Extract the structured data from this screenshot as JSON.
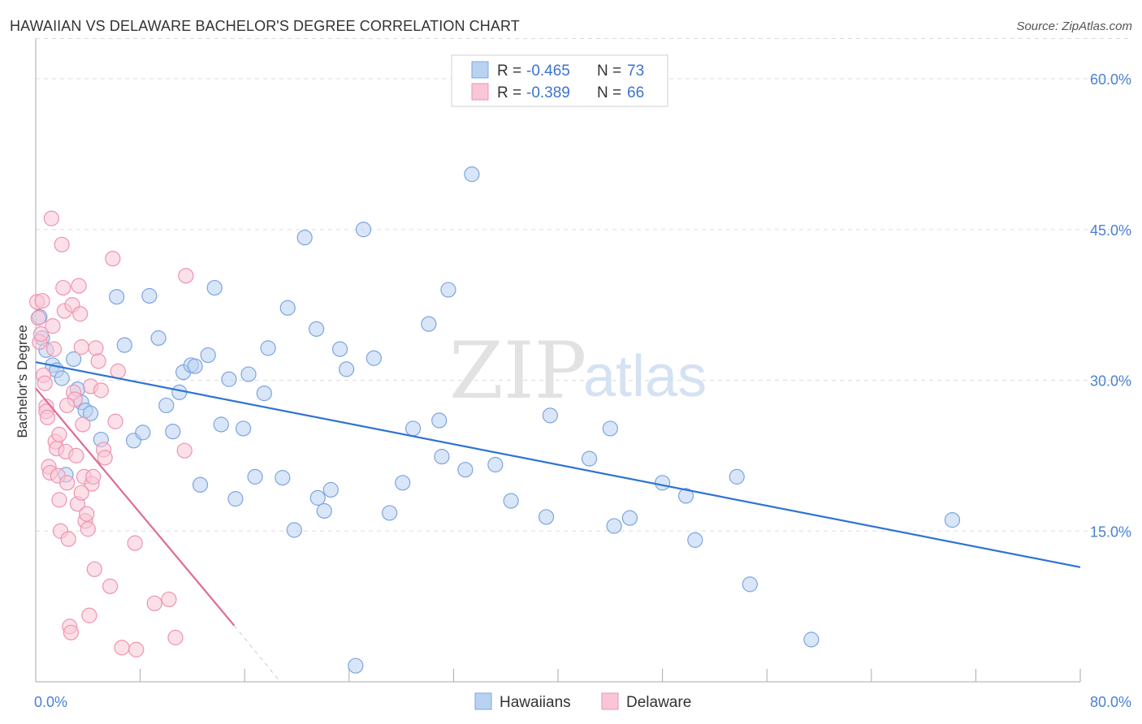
{
  "title": "HAWAIIAN VS DELAWARE BACHELOR'S DEGREE CORRELATION CHART",
  "source": "Source: ZipAtlas.com",
  "colors": {
    "blue_fill": "#b9d2f2",
    "blue_stroke": "#7ba5e0",
    "blue_line": "#2f73d0",
    "pink_fill": "#f9c6d6",
    "pink_stroke": "#ee93b1",
    "pink_line": "#e06b93",
    "grid": "#dddddd",
    "tick": "#4a7fd4"
  },
  "chart_data": {
    "type": "scatter",
    "title": "HAWAIIAN VS DELAWARE BACHELOR'S DEGREE CORRELATION CHART",
    "xlabel": "",
    "ylabel": "Bachelor's Degree",
    "xlim": [
      0,
      80
    ],
    "ylim": [
      0,
      64
    ],
    "x_tick_labels": [
      "0.0%",
      "80.0%"
    ],
    "y_ticks": [
      15,
      30,
      45,
      60
    ],
    "y_tick_labels": [
      "15.0%",
      "30.0%",
      "45.0%",
      "60.0%"
    ],
    "legend": {
      "rows": [
        {
          "r_label": "R =",
          "r_value": "-0.465",
          "n_label": "N =",
          "n_value": "73"
        },
        {
          "r_label": "R =",
          "r_value": "-0.389",
          "n_label": "N =",
          "n_value": "66"
        }
      ]
    },
    "series": [
      {
        "name": "Hawaiians",
        "trend": {
          "x0": 0,
          "y0": 31.8,
          "x1": 80,
          "y1": 11.4
        },
        "points": [
          [
            0.3,
            36.3
          ],
          [
            0.5,
            34.2
          ],
          [
            0.8,
            33.0
          ],
          [
            1.3,
            31.5
          ],
          [
            1.6,
            31.0
          ],
          [
            2.0,
            30.2
          ],
          [
            2.3,
            20.6
          ],
          [
            2.9,
            32.1
          ],
          [
            3.2,
            29.1
          ],
          [
            3.5,
            27.8
          ],
          [
            3.8,
            27.0
          ],
          [
            4.2,
            26.7
          ],
          [
            5.0,
            24.1
          ],
          [
            6.2,
            38.3
          ],
          [
            6.8,
            33.5
          ],
          [
            7.5,
            24.0
          ],
          [
            8.2,
            24.8
          ],
          [
            8.7,
            38.4
          ],
          [
            9.4,
            34.2
          ],
          [
            10.0,
            27.5
          ],
          [
            10.5,
            24.9
          ],
          [
            11.0,
            28.8
          ],
          [
            11.3,
            30.8
          ],
          [
            11.9,
            31.5
          ],
          [
            12.2,
            31.4
          ],
          [
            12.6,
            19.6
          ],
          [
            13.2,
            32.5
          ],
          [
            13.7,
            39.2
          ],
          [
            14.2,
            25.6
          ],
          [
            14.8,
            30.1
          ],
          [
            15.3,
            18.2
          ],
          [
            15.9,
            25.2
          ],
          [
            16.3,
            30.6
          ],
          [
            16.8,
            20.4
          ],
          [
            17.5,
            28.7
          ],
          [
            17.8,
            33.2
          ],
          [
            18.9,
            20.3
          ],
          [
            19.3,
            37.2
          ],
          [
            19.8,
            15.1
          ],
          [
            20.6,
            44.2
          ],
          [
            21.5,
            35.1
          ],
          [
            21.6,
            18.3
          ],
          [
            22.1,
            17.0
          ],
          [
            22.6,
            19.1
          ],
          [
            23.3,
            33.1
          ],
          [
            23.8,
            31.1
          ],
          [
            25.1,
            45.0
          ],
          [
            25.9,
            32.2
          ],
          [
            27.1,
            16.8
          ],
          [
            28.1,
            19.8
          ],
          [
            28.9,
            25.2
          ],
          [
            30.1,
            35.6
          ],
          [
            30.9,
            26.0
          ],
          [
            31.1,
            22.4
          ],
          [
            31.6,
            39.0
          ],
          [
            32.9,
            21.1
          ],
          [
            33.4,
            50.5
          ],
          [
            35.2,
            21.6
          ],
          [
            36.4,
            18.0
          ],
          [
            39.1,
            16.4
          ],
          [
            39.4,
            26.5
          ],
          [
            42.4,
            22.2
          ],
          [
            44.0,
            25.2
          ],
          [
            44.3,
            15.5
          ],
          [
            45.5,
            16.3
          ],
          [
            48.0,
            19.8
          ],
          [
            49.8,
            18.5
          ],
          [
            50.5,
            14.1
          ],
          [
            53.7,
            20.4
          ],
          [
            54.7,
            9.7
          ],
          [
            59.4,
            4.2
          ],
          [
            70.2,
            16.1
          ],
          [
            24.5,
            1.6
          ]
        ]
      },
      {
        "name": "Delaware",
        "trend": {
          "x0": 0,
          "y0": 29.2,
          "x1": 15.2,
          "y1": 5.6,
          "dash_x1": 18.6,
          "dash_y1": 0.2
        },
        "points": [
          [
            0.1,
            37.8
          ],
          [
            0.2,
            36.2
          ],
          [
            0.3,
            33.8
          ],
          [
            0.4,
            34.6
          ],
          [
            0.5,
            37.9
          ],
          [
            0.6,
            30.5
          ],
          [
            0.7,
            29.7
          ],
          [
            0.8,
            27.4
          ],
          [
            0.8,
            26.9
          ],
          [
            0.9,
            26.3
          ],
          [
            1.0,
            21.4
          ],
          [
            1.1,
            20.8
          ],
          [
            1.2,
            46.1
          ],
          [
            1.3,
            35.4
          ],
          [
            1.4,
            33.1
          ],
          [
            1.5,
            23.9
          ],
          [
            1.6,
            23.2
          ],
          [
            1.7,
            20.5
          ],
          [
            1.8,
            18.1
          ],
          [
            1.9,
            15.0
          ],
          [
            2.0,
            43.5
          ],
          [
            2.1,
            39.2
          ],
          [
            2.2,
            36.9
          ],
          [
            2.3,
            22.9
          ],
          [
            2.4,
            19.8
          ],
          [
            2.5,
            14.2
          ],
          [
            2.6,
            5.5
          ],
          [
            2.7,
            4.9
          ],
          [
            2.8,
            37.5
          ],
          [
            2.9,
            28.8
          ],
          [
            3.0,
            28.1
          ],
          [
            3.1,
            22.5
          ],
          [
            3.2,
            17.7
          ],
          [
            3.3,
            39.4
          ],
          [
            3.4,
            36.6
          ],
          [
            3.5,
            33.3
          ],
          [
            3.6,
            25.6
          ],
          [
            3.7,
            20.4
          ],
          [
            3.8,
            16.0
          ],
          [
            3.9,
            16.7
          ],
          [
            4.0,
            15.2
          ],
          [
            4.1,
            6.6
          ],
          [
            4.2,
            29.4
          ],
          [
            4.3,
            19.7
          ],
          [
            4.4,
            20.4
          ],
          [
            4.5,
            11.2
          ],
          [
            4.6,
            33.2
          ],
          [
            4.8,
            31.9
          ],
          [
            5.0,
            29.0
          ],
          [
            5.2,
            23.1
          ],
          [
            5.3,
            22.3
          ],
          [
            5.7,
            9.5
          ],
          [
            5.9,
            42.1
          ],
          [
            6.1,
            25.9
          ],
          [
            6.3,
            30.9
          ],
          [
            6.6,
            3.4
          ],
          [
            7.6,
            13.8
          ],
          [
            7.7,
            3.2
          ],
          [
            9.1,
            7.8
          ],
          [
            10.2,
            8.2
          ],
          [
            10.7,
            4.4
          ],
          [
            11.4,
            23.0
          ],
          [
            11.5,
            40.4
          ],
          [
            3.5,
            18.8
          ],
          [
            1.8,
            24.6
          ],
          [
            2.4,
            27.5
          ]
        ]
      }
    ]
  },
  "legend_bottom": [
    "Hawaiians",
    "Delaware"
  ],
  "watermark": {
    "zip": "ZIP",
    "atlas": "atlas"
  }
}
